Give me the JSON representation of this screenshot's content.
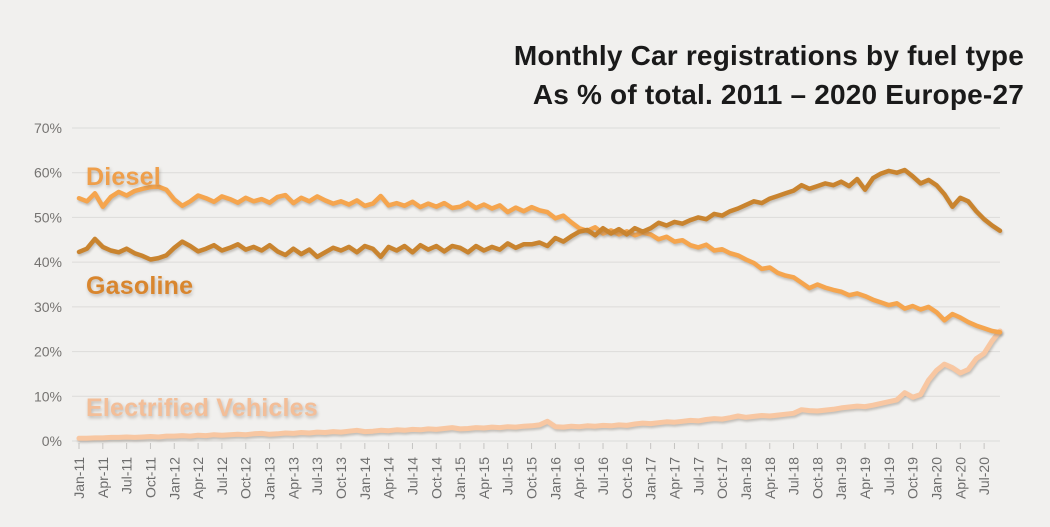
{
  "title": {
    "line1": "Monthly Car registrations by fuel type",
    "line2": "As % of total. 2011 – 2020 Europe-27"
  },
  "colors": {
    "background": "#f1f0ee",
    "grid": "#dcdbd9",
    "axis_text": "#6e6e6e",
    "title_text": "#1a1a1a",
    "diesel_line": "#f5a54e",
    "gasoline_line": "#c9842f",
    "electrified_line": "#f8c7a2",
    "diesel_label": "#ef9f4b",
    "gasoline_label": "#d9862e",
    "electrified_label": "#f3be98"
  },
  "chart_data": {
    "type": "line",
    "title": "Monthly Car registrations by fuel type",
    "subtitle": "As % of total. 2011 – 2020 Europe-27",
    "xlabel": "",
    "ylabel": "",
    "ylim": [
      0,
      70
    ],
    "grid": "horizontal-only",
    "legend_position": "inline-labels-left",
    "y_tick_labels": [
      "70%",
      "60%",
      "50%",
      "40%",
      "30%",
      "20%",
      "10%",
      "0%"
    ],
    "y_tick_values": [
      70,
      60,
      50,
      40,
      30,
      20,
      10,
      0
    ],
    "x_start_month": "Jan-11",
    "x_end_month": "Sep-20",
    "x_points_per_tick": 3,
    "x_tick_labels": [
      "Jan-11",
      "Apr-11",
      "Jul-11",
      "Oct-11",
      "Jan-12",
      "Apr-12",
      "Jul-12",
      "Oct-12",
      "Jan-13",
      "Apr-13",
      "Jul-13",
      "Oct-13",
      "Jan-14",
      "Apr-14",
      "Jul-14",
      "Oct-14",
      "Jan-15",
      "Apr-15",
      "Jul-15",
      "Oct-15",
      "Jan-16",
      "Apr-16",
      "Jul-16",
      "Oct-16",
      "Jan-17",
      "Apr-17",
      "Jul-17",
      "Oct-17",
      "Jan-18",
      "Apr-18",
      "Jul-18",
      "Oct-18",
      "Jan-19",
      "Apr-19",
      "Jul-19",
      "Oct-19",
      "Jan-20",
      "Apr-20",
      "Jul-20"
    ],
    "series": [
      {
        "name": "Electrified Vehicles",
        "color_key": "electrified_line",
        "values": [
          0.6,
          0.6,
          0.7,
          0.7,
          0.8,
          0.8,
          0.9,
          0.8,
          0.9,
          1.0,
          0.9,
          1.1,
          1.1,
          1.2,
          1.1,
          1.3,
          1.2,
          1.4,
          1.3,
          1.4,
          1.5,
          1.4,
          1.6,
          1.7,
          1.5,
          1.6,
          1.8,
          1.7,
          1.9,
          1.8,
          2.0,
          1.9,
          2.1,
          2.0,
          2.2,
          2.4,
          2.1,
          2.2,
          2.4,
          2.3,
          2.5,
          2.4,
          2.6,
          2.5,
          2.7,
          2.6,
          2.8,
          3.0,
          2.7,
          2.8,
          3.0,
          2.9,
          3.1,
          3.0,
          3.2,
          3.1,
          3.3,
          3.4,
          3.6,
          4.4,
          3.2,
          3.1,
          3.3,
          3.2,
          3.4,
          3.3,
          3.5,
          3.4,
          3.6,
          3.5,
          3.8,
          4.0,
          3.9,
          4.1,
          4.3,
          4.2,
          4.4,
          4.6,
          4.5,
          4.8,
          5.0,
          4.9,
          5.2,
          5.6,
          5.3,
          5.5,
          5.7,
          5.6,
          5.8,
          6.0,
          6.2,
          7.0,
          6.8,
          6.7,
          6.9,
          7.1,
          7.4,
          7.6,
          7.8,
          7.7,
          8.0,
          8.4,
          8.8,
          9.2,
          10.8,
          9.8,
          10.4,
          13.6,
          15.8,
          17.2,
          16.4,
          15.2,
          16.0,
          18.4,
          19.6,
          22.4,
          24.6
        ]
      },
      {
        "name": "Diesel",
        "color_key": "diesel_line",
        "values": [
          54.3,
          53.6,
          55.4,
          52.4,
          54.6,
          55.7,
          54.9,
          55.9,
          56.4,
          56.8,
          56.9,
          56.2,
          54.0,
          52.6,
          53.6,
          54.9,
          54.3,
          53.5,
          54.7,
          54.1,
          53.3,
          54.4,
          53.6,
          54.1,
          53.3,
          54.6,
          55.0,
          53.2,
          54.4,
          53.6,
          54.7,
          53.8,
          53.1,
          53.6,
          52.9,
          53.8,
          52.6,
          53.1,
          54.8,
          52.7,
          53.2,
          52.6,
          53.5,
          52.3,
          53.1,
          52.4,
          53.2,
          52.1,
          52.4,
          53.3,
          52.1,
          52.9,
          52.0,
          52.7,
          51.2,
          52.2,
          51.4,
          52.3,
          51.6,
          51.2,
          49.8,
          50.4,
          48.9,
          47.6,
          47.0,
          47.8,
          46.4,
          47.1,
          46.2,
          46.9,
          46.0,
          46.6,
          46.2,
          45.1,
          45.7,
          44.6,
          44.9,
          43.8,
          43.3,
          43.9,
          42.6,
          42.9,
          42.0,
          41.5,
          40.6,
          39.8,
          38.5,
          38.8,
          37.6,
          37.0,
          36.6,
          35.4,
          34.2,
          35.0,
          34.3,
          33.8,
          33.4,
          32.6,
          33.0,
          32.4,
          31.6,
          31.0,
          30.4,
          30.8,
          29.6,
          30.2,
          29.4,
          30.0,
          28.8,
          27.0,
          28.4,
          27.6,
          26.6,
          25.8,
          25.2,
          24.6,
          24.3
        ]
      },
      {
        "name": "Gasoline",
        "color_key": "gasoline_line",
        "values": [
          42.3,
          43.0,
          45.2,
          43.4,
          42.6,
          42.2,
          43.0,
          42.0,
          41.4,
          40.6,
          40.9,
          41.5,
          43.2,
          44.6,
          43.6,
          42.4,
          43.0,
          43.8,
          42.6,
          43.2,
          44.0,
          42.8,
          43.4,
          42.6,
          43.8,
          42.4,
          41.6,
          43.0,
          41.8,
          42.8,
          41.2,
          42.2,
          43.2,
          42.6,
          43.4,
          42.2,
          43.6,
          43.0,
          41.2,
          43.4,
          42.6,
          43.6,
          42.2,
          43.8,
          42.8,
          43.6,
          42.4,
          43.6,
          43.2,
          42.2,
          43.6,
          42.6,
          43.4,
          42.8,
          44.2,
          43.2,
          44.0,
          44.0,
          44.4,
          43.6,
          45.4,
          44.6,
          45.8,
          46.8,
          47.2,
          46.0,
          47.6,
          46.4,
          47.4,
          46.2,
          47.6,
          46.8,
          47.6,
          48.8,
          48.2,
          49.0,
          48.6,
          49.4,
          50.0,
          49.6,
          50.8,
          50.4,
          51.4,
          52.0,
          52.8,
          53.6,
          53.2,
          54.2,
          54.8,
          55.4,
          56.0,
          57.2,
          56.4,
          57.0,
          57.6,
          57.2,
          58.0,
          57.0,
          58.6,
          56.2,
          58.8,
          59.8,
          60.4,
          60.0,
          60.6,
          59.2,
          57.6,
          58.4,
          57.2,
          55.2,
          52.4,
          54.4,
          53.6,
          51.4,
          49.6,
          48.2,
          47.0
        ]
      }
    ],
    "series_labels": [
      {
        "text": "Diesel",
        "color_key": "diesel_label"
      },
      {
        "text": "Gasoline",
        "color_key": "gasoline_label"
      },
      {
        "text": "Electrified Vehicles",
        "color_key": "electrified_label"
      }
    ]
  }
}
